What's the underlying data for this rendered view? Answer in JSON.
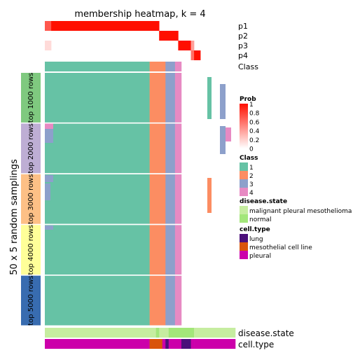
{
  "chart_data": {
    "type": "heatmap",
    "title": "membership heatmap, k = 4",
    "ylabel": "50 x 5 random samplings",
    "n_samples": 60,
    "class_counts": [
      33,
      5,
      3,
      2
    ],
    "class_colors": {
      "1": "#66C2A5",
      "2": "#FC8D62",
      "3": "#8DA0CB",
      "4": "#E78AC3"
    },
    "prob_rows": [
      {
        "name": "p1",
        "segments": [
          {
            "n": 2,
            "value": 0.7
          },
          {
            "n": 34,
            "value": 1.0
          },
          {
            "n": 24,
            "value": 0
          }
        ]
      },
      {
        "name": "p2",
        "segments": [
          {
            "n": 36,
            "value": 0
          },
          {
            "n": 6,
            "value": 1.0
          },
          {
            "n": 18,
            "value": 0
          }
        ]
      },
      {
        "name": "p3",
        "segments": [
          {
            "n": 2,
            "value": 0.15
          },
          {
            "n": 40,
            "value": 0
          },
          {
            "n": 4,
            "value": 1.0
          },
          {
            "n": 1,
            "value": 0.4
          },
          {
            "n": 13,
            "value": 0
          }
        ]
      },
      {
        "name": "p4",
        "segments": [
          {
            "n": 46,
            "value": 0
          },
          {
            "n": 1,
            "value": 0.6
          },
          {
            "n": 2,
            "value": 1.0
          },
          {
            "n": 11,
            "value": 0
          }
        ]
      }
    ],
    "class_row_label": "Class",
    "membership_groups": [
      "top 1000 rows",
      "top 2000 rows",
      "top 3000 rows",
      "top 4000 rows",
      "top 5000 rows"
    ],
    "membership_group_colors": [
      "#7FC97F",
      "#BEAED4",
      "#FDC086",
      "#FFFF99",
      "#386CB0"
    ],
    "legend_prob": {
      "title": "Prob",
      "ticks": [
        "1",
        "0.8",
        "0.6",
        "0.4",
        "0.2",
        "0"
      ]
    },
    "legend_class": {
      "title": "Class",
      "labels": [
        "1",
        "2",
        "3",
        "4"
      ]
    },
    "legend_disease": {
      "title": "disease.state",
      "labels": [
        "malignant pleural mesothelioma",
        "normal"
      ],
      "colors": [
        "#C6EDA0",
        "#A3E67A"
      ]
    },
    "legend_celltype": {
      "title": "cell.type",
      "labels": [
        "lung",
        "mesothelial cell line",
        "pleural"
      ],
      "colors": [
        "#4B0F7A",
        "#D9540A",
        "#CC00AA"
      ]
    },
    "disease_row": {
      "label": "disease.state",
      "segments": [
        {
          "n": 35,
          "key": 0
        },
        {
          "n": 1,
          "key": 1
        },
        {
          "n": 3,
          "key": 0
        },
        {
          "n": 8,
          "key": 1
        },
        {
          "n": 13,
          "key": 0
        }
      ]
    },
    "celltype_row": {
      "label": "cell.type",
      "segments": [
        {
          "n": 33,
          "key": 2
        },
        {
          "n": 4,
          "key": 1
        },
        {
          "n": 1,
          "key": 2
        },
        {
          "n": 1,
          "key": 0
        },
        {
          "n": 4,
          "key": 2
        },
        {
          "n": 3,
          "key": 0
        },
        {
          "n": 1,
          "key": 2
        },
        {
          "n": 13,
          "key": 2
        }
      ]
    }
  }
}
